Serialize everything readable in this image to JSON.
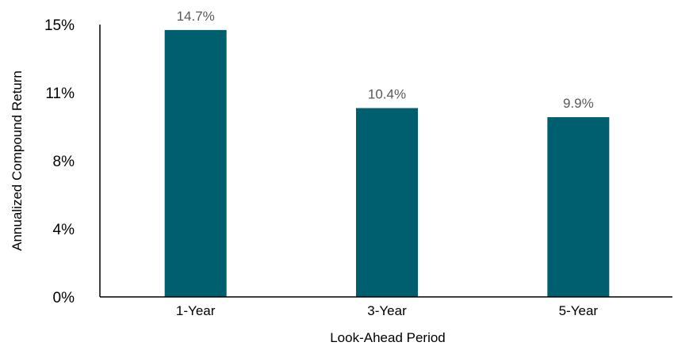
{
  "chart_data": {
    "type": "bar",
    "title": "",
    "xlabel": "Look-Ahead Period",
    "ylabel": "Annualized Compound Return",
    "categories": [
      "1-Year",
      "3-Year",
      "5-Year"
    ],
    "values": [
      14.7,
      10.4,
      9.9
    ],
    "data_labels": [
      "14.7%",
      "10.4%",
      "9.9%"
    ],
    "ylim": [
      0,
      15
    ],
    "yticks": [
      0,
      3.75,
      7.5,
      11.25,
      15
    ],
    "ytick_labels": [
      "0%",
      "4%",
      "8%",
      "11%",
      "15%"
    ],
    "grid": false,
    "legend": "none",
    "bar_color": "#005f6e"
  }
}
